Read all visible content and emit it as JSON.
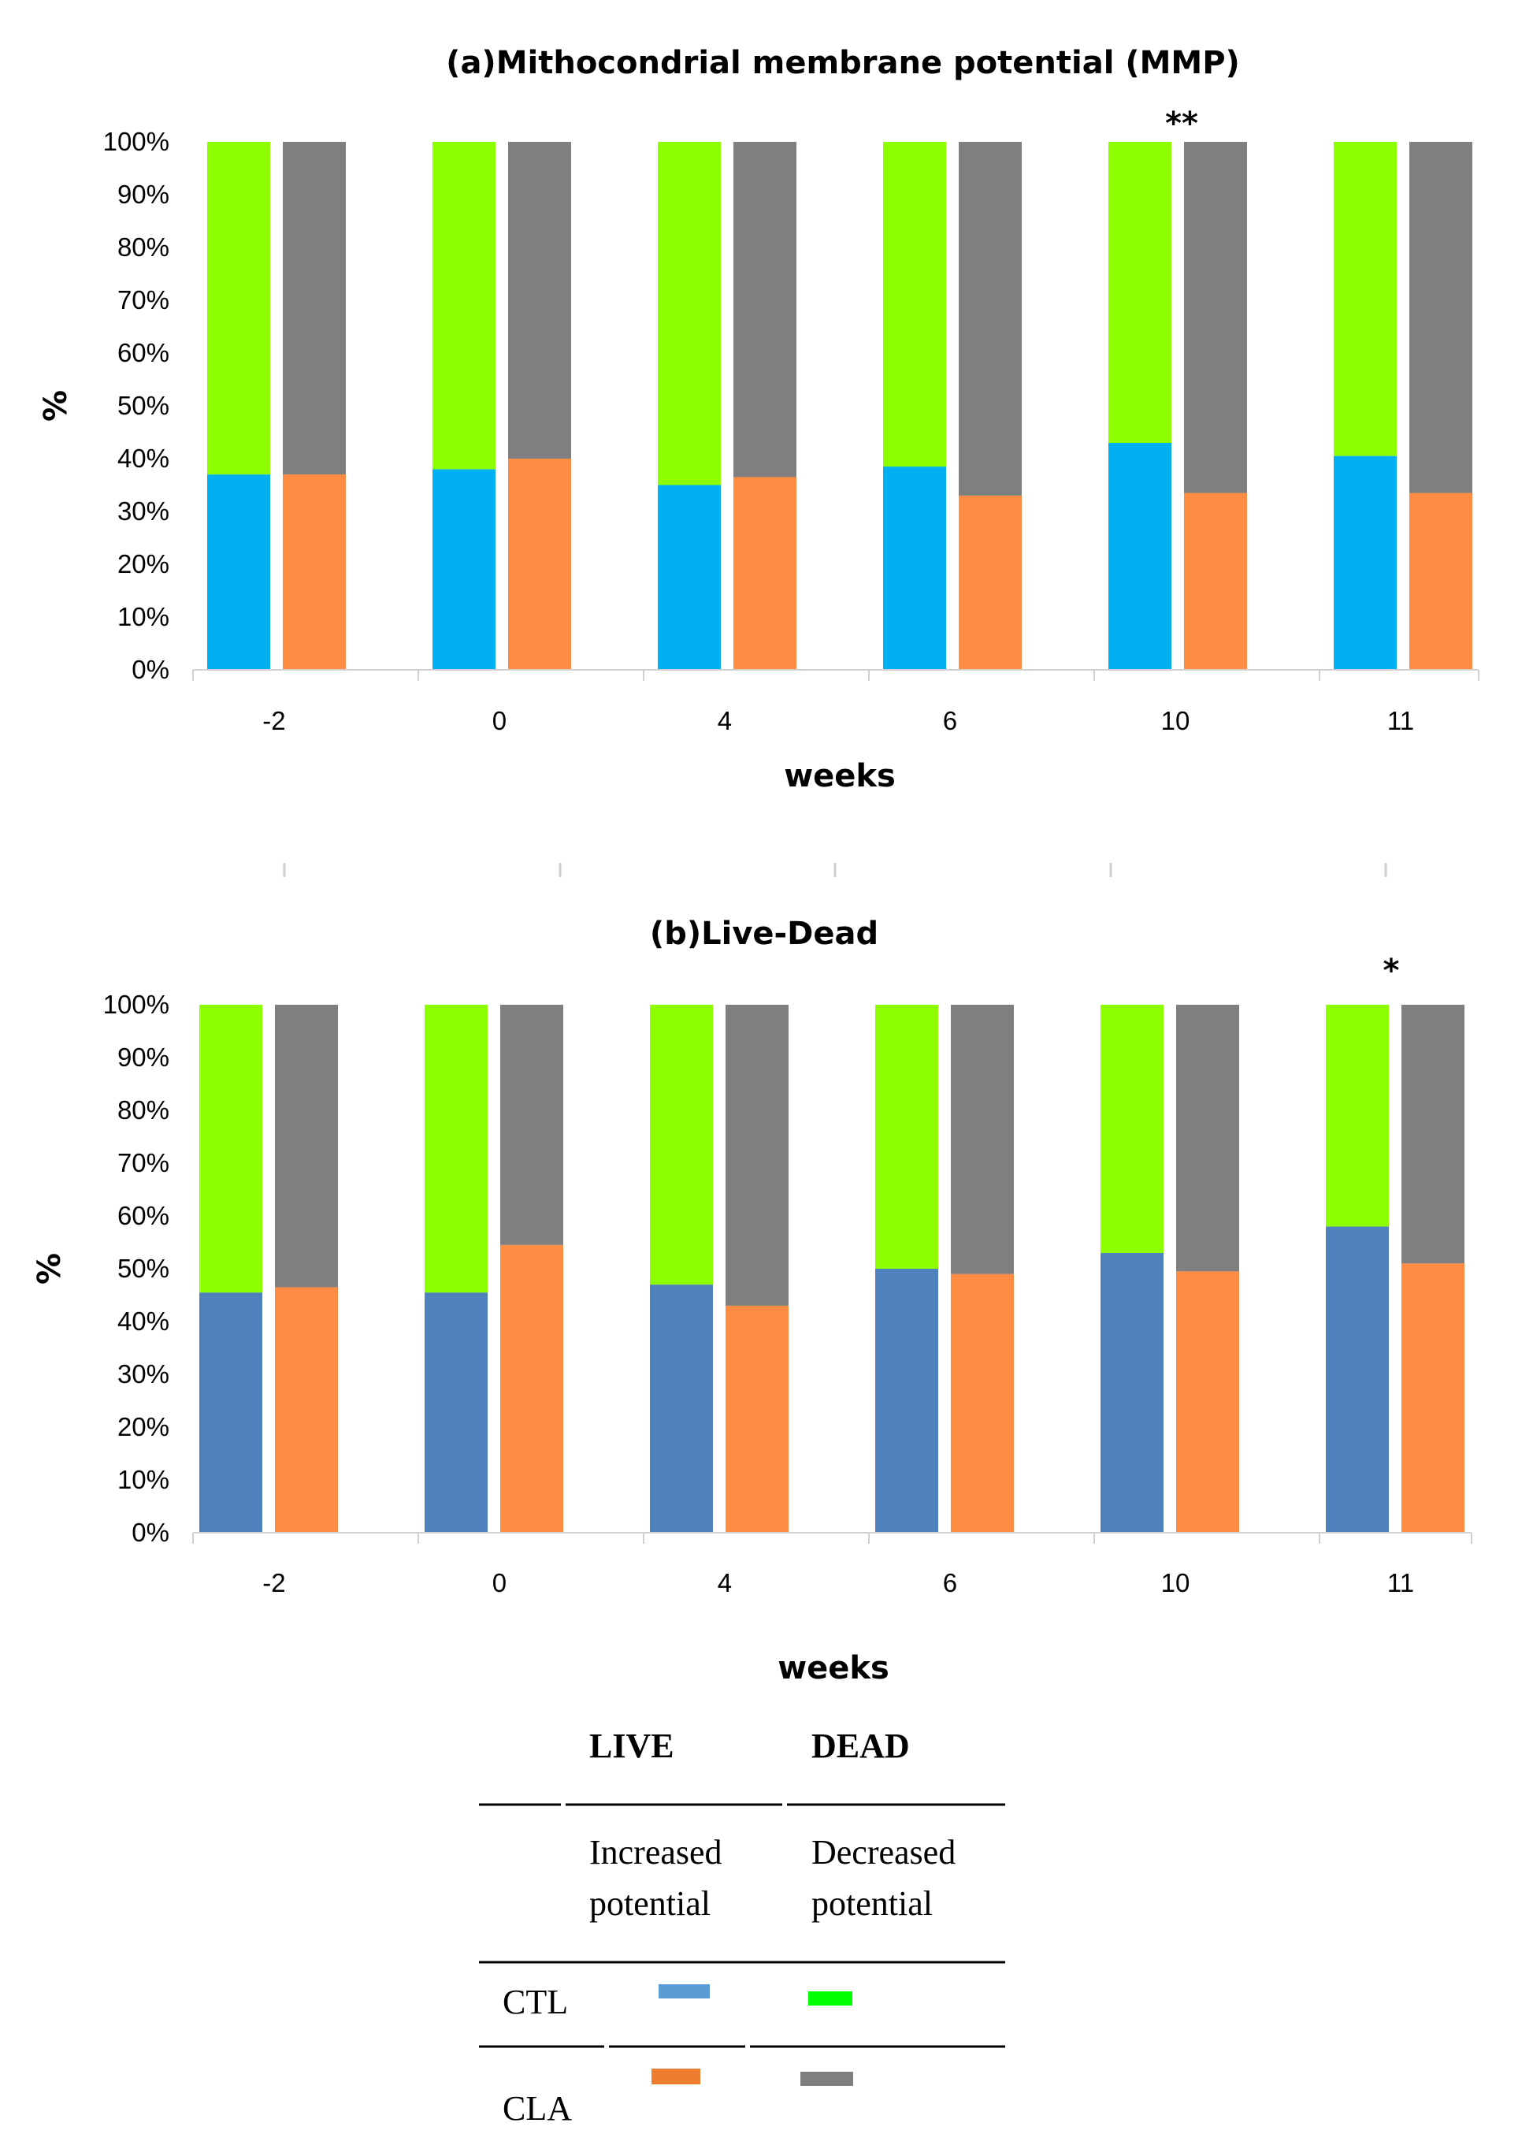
{
  "chart_data": [
    {
      "type": "bar",
      "stacked": true,
      "percent": true,
      "title": "(a)Mithocondrial membrane potential (MMP)",
      "xlabel": "weeks",
      "ylabel": "%",
      "ylim": [
        0,
        100
      ],
      "yticks": [
        "0%",
        "10%",
        "20%",
        "30%",
        "40%",
        "50%",
        "60%",
        "70%",
        "80%",
        "90%",
        "100%"
      ],
      "categories": [
        "-2",
        "0",
        "4",
        "6",
        "10",
        "11"
      ],
      "groups": [
        {
          "name": "CTL",
          "lower": "Increased potential",
          "lower_color": "#00b0f0",
          "upper": "Decreased potential",
          "upper_color": "#8eff00",
          "values": [
            37,
            38,
            35,
            38.5,
            43,
            40.5
          ]
        },
        {
          "name": "CLA",
          "lower": "Increased potential",
          "lower_color": "#ff8c42",
          "upper": "Decreased potential",
          "upper_color": "#7f7f7f",
          "values": [
            37,
            40,
            36.5,
            33,
            33.5,
            33.5
          ]
        }
      ],
      "annotations": [
        {
          "category": "10",
          "text": "**"
        }
      ]
    },
    {
      "type": "bar",
      "stacked": true,
      "percent": true,
      "title": "(b)Live-Dead",
      "xlabel": "weeks",
      "ylabel": "%",
      "ylim": [
        0,
        100
      ],
      "yticks": [
        "0%",
        "10%",
        "20%",
        "30%",
        "40%",
        "50%",
        "60%",
        "70%",
        "80%",
        "90%",
        "100%"
      ],
      "categories": [
        "-2",
        "0",
        "4",
        "6",
        "10",
        "11"
      ],
      "groups": [
        {
          "name": "CTL",
          "lower": "LIVE",
          "lower_color": "#4f81bd",
          "upper": "DEAD",
          "upper_color": "#8eff00",
          "values": [
            45.5,
            45.5,
            47,
            50,
            53,
            58
          ]
        },
        {
          "name": "CLA",
          "lower": "LIVE",
          "lower_color": "#ff8c42",
          "upper": "DEAD",
          "upper_color": "#7f7f7f",
          "values": [
            46.5,
            54.5,
            43,
            49,
            49.5,
            51
          ]
        }
      ],
      "annotations": [
        {
          "category": "11",
          "text": "*"
        }
      ]
    }
  ],
  "legend": {
    "col1_header": "LIVE",
    "col2_header": "DEAD",
    "col1_sub1": "Increased",
    "col1_sub2": "potential",
    "col2_sub1": "Decreased",
    "col2_sub2": "potential",
    "rows": [
      {
        "label": "CTL",
        "live_color": "#5b9bd5",
        "dead_color": "#00ff00"
      },
      {
        "label": "CLA",
        "live_color": "#ed7d31",
        "dead_color": "#7f7f7f"
      }
    ]
  }
}
